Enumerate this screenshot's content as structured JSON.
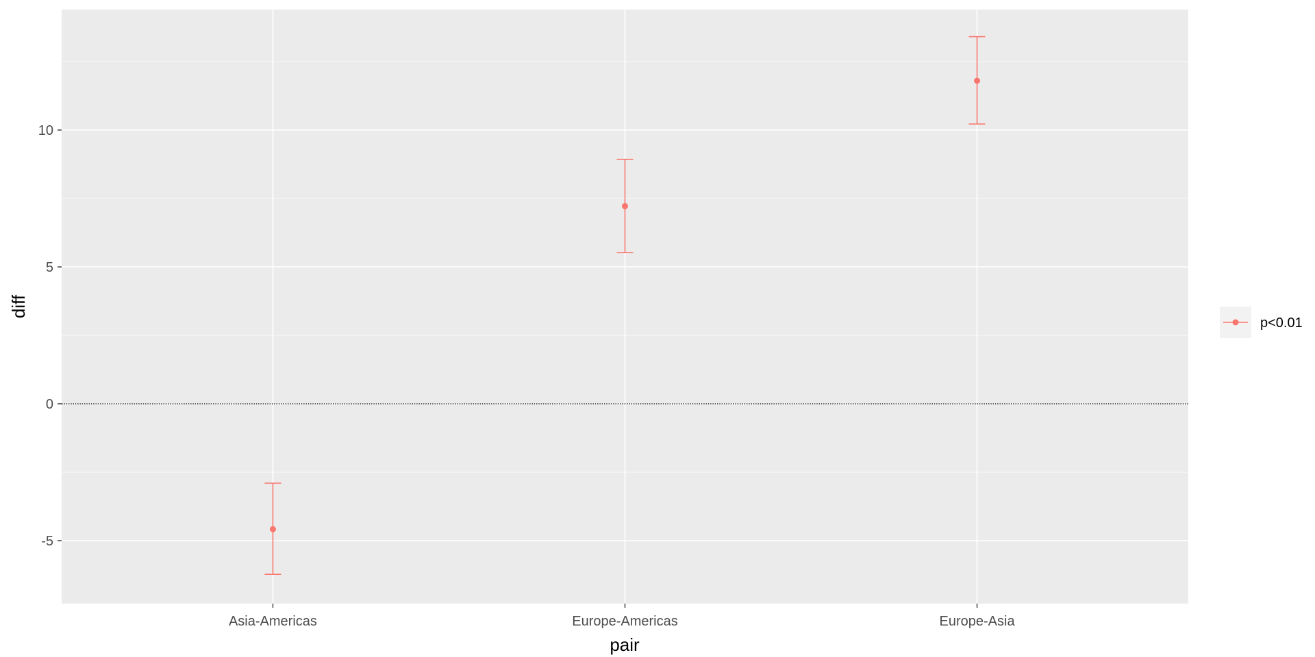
{
  "chart_data": {
    "type": "scatter",
    "subtype": "pointrange-errorbar",
    "title": "",
    "xlabel": "pair",
    "ylabel": "diff",
    "categories": [
      "Asia-Americas",
      "Europe-Americas",
      "Europe-Asia"
    ],
    "series": [
      {
        "name": "p<0.01",
        "color": "#F8766D",
        "points": [
          {
            "x": "Asia-Americas",
            "y": -4.58,
            "lower": -6.23,
            "upper": -2.9
          },
          {
            "x": "Europe-Americas",
            "y": 7.22,
            "lower": 5.52,
            "upper": 8.93
          },
          {
            "x": "Europe-Asia",
            "y": 11.8,
            "lower": 10.22,
            "upper": 13.41
          }
        ]
      }
    ],
    "ylim": [
      -7.3,
      14.4
    ],
    "yticks": [
      -5,
      0,
      5,
      10
    ],
    "ytick_labels": [
      "-5",
      "0",
      "5",
      "10"
    ],
    "reference_line": {
      "y": 0,
      "style": "dotted"
    },
    "grid": true,
    "legend_position": "right",
    "panel_background": "#EBEBEB",
    "grid_color": "#FFFFFF"
  }
}
